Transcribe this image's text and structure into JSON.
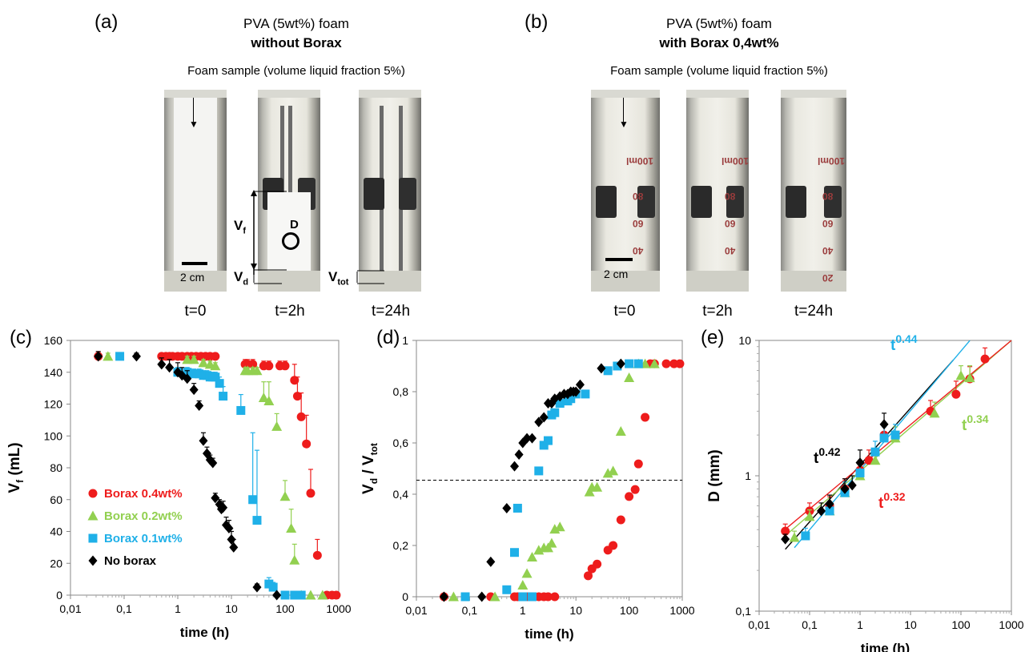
{
  "panel_a": {
    "label": "(a)",
    "title_line1": "PVA (5wt%) foam",
    "title_line2": "without Borax",
    "subtitle": "Foam sample (volume liquid fraction 5%)",
    "times": [
      "t=0",
      "t=2h",
      "t=24h"
    ],
    "scale_bar": "2 cm",
    "annotations": {
      "vf": "V",
      "vf_sub": "f",
      "vd": "V",
      "vd_sub": "d",
      "vtot": "V",
      "vtot_sub": "tot",
      "d": "D"
    }
  },
  "panel_b": {
    "label": "(b)",
    "title_line1": "PVA (5wt%) foam",
    "title_line2": "with Borax 0,4wt%",
    "subtitle": "Foam sample (volume liquid fraction 5%)",
    "times": [
      "t=0",
      "t=2h",
      "t=24h"
    ],
    "scale_bar": "2 cm",
    "graduations": [
      "100ml",
      "80",
      "60",
      "40",
      "20"
    ]
  },
  "colors": {
    "red": "#ee1c1c",
    "green": "#92d050",
    "blue": "#1fb0e8",
    "black": "#000000"
  },
  "chart_data": [
    {
      "panel": "(c)",
      "type": "scatter",
      "xscale": "log",
      "xlim": [
        0.01,
        1000
      ],
      "ylim": [
        0,
        160
      ],
      "xticks": [
        "0,01",
        "0,1",
        "1",
        "10",
        "100",
        "1000"
      ],
      "yticks": [
        "0",
        "20",
        "40",
        "60",
        "80",
        "100",
        "120",
        "140",
        "160"
      ],
      "xlabel": "time (h)",
      "ylabel": "V",
      "ylabel_sub": "f",
      "ylabel_unit": " (mL)",
      "legend_position": "left",
      "series": [
        {
          "name": "Borax 0.4wt%",
          "color": "#ee1c1c",
          "marker": "circle",
          "x": [
            0.033,
            0.5,
            0.6,
            0.7,
            0.8,
            1,
            1.2,
            1.5,
            1.8,
            2.2,
            2.7,
            3.3,
            4,
            5,
            18,
            20,
            25,
            40,
            50,
            80,
            100,
            150,
            170,
            200,
            250,
            300,
            400,
            600,
            750,
            900
          ],
          "y": [
            150,
            150,
            150,
            150,
            150,
            150,
            150,
            150,
            150,
            150,
            150,
            150,
            150,
            150,
            145,
            145,
            145,
            144,
            144,
            144,
            144,
            135,
            125,
            112,
            95,
            64,
            25,
            0,
            0,
            0
          ],
          "err": [
            3,
            2,
            2,
            2,
            2,
            2,
            2,
            2,
            2,
            2,
            2,
            2,
            2,
            2,
            3,
            3,
            3,
            3,
            3,
            3,
            3,
            10,
            12,
            15,
            18,
            15,
            10,
            0,
            0,
            0
          ]
        },
        {
          "name": "Borax 0.2wt%",
          "color": "#92d050",
          "marker": "triangle",
          "x": [
            0.05,
            1.5,
            2,
            3,
            4,
            5,
            18,
            20,
            25,
            30,
            40,
            50,
            70,
            100,
            130,
            150,
            200,
            300,
            500
          ],
          "y": [
            150,
            148,
            148,
            146,
            145,
            144,
            141,
            141,
            141,
            141,
            124,
            122,
            106,
            62,
            42,
            22,
            0,
            0,
            0
          ],
          "err": [
            2,
            2,
            2,
            2,
            2,
            2,
            2,
            2,
            2,
            2,
            10,
            12,
            8,
            10,
            12,
            10,
            0,
            0,
            0
          ]
        },
        {
          "name": "Borax 0.1wt%",
          "color": "#1fb0e8",
          "marker": "square",
          "x": [
            0.083,
            1,
            1.5,
            2,
            2.5,
            3,
            3.5,
            4,
            4.5,
            5,
            6,
            7,
            15,
            25,
            30,
            50,
            60,
            100,
            150,
            200
          ],
          "y": [
            150,
            140,
            140,
            139,
            139,
            138,
            138,
            137,
            137,
            137,
            133,
            125,
            116,
            60,
            47,
            7,
            5,
            0,
            0,
            0
          ],
          "err": [
            2,
            3,
            3,
            3,
            3,
            3,
            3,
            3,
            3,
            3,
            4,
            6,
            10,
            42,
            44,
            4,
            3,
            0,
            0,
            0
          ]
        },
        {
          "name": "No borax",
          "color": "#000000",
          "marker": "diamond",
          "x": [
            0.033,
            0.17,
            0.5,
            0.7,
            1,
            1.2,
            1.5,
            2,
            2.5,
            3,
            3.5,
            4,
            4.5,
            5,
            6,
            6.5,
            7,
            8,
            9,
            10,
            11,
            30,
            70
          ],
          "y": [
            150,
            150,
            145,
            143,
            140,
            138,
            136,
            129,
            119,
            97,
            89,
            85,
            83,
            61,
            57,
            54,
            55,
            44,
            42,
            35,
            30,
            5,
            0
          ],
          "err": [
            3,
            2,
            4,
            5,
            6,
            5,
            5,
            4,
            3,
            5,
            4,
            3,
            3,
            3,
            3,
            4,
            4,
            5,
            5,
            5,
            5,
            2,
            0
          ]
        }
      ]
    },
    {
      "panel": "(d)",
      "type": "scatter",
      "xscale": "log",
      "xlim": [
        0.01,
        1000
      ],
      "ylim": [
        0,
        1.1
      ],
      "xticks": [
        "0,01",
        "0,1",
        "1",
        "10",
        "100",
        "1000"
      ],
      "yticks": [
        "0",
        "0,2",
        "0,4",
        "0,6",
        "0,8",
        "1"
      ],
      "xlabel": "time (h)",
      "ylabel": "V",
      "ylabel_sub": "d",
      "ylabel_mid": " / V",
      "ylabel_sub2": "tot",
      "reference_line": 0.5,
      "series": [
        {
          "color": "#ee1c1c",
          "marker": "circle",
          "x": [
            0.033,
            0.25,
            0.7,
            0.8,
            0.9,
            1,
            1.2,
            1.5,
            2,
            2.5,
            3,
            4,
            17,
            20,
            25,
            40,
            50,
            70,
            100,
            130,
            150,
            200,
            250,
            300,
            500,
            700,
            900
          ],
          "y": [
            0,
            0,
            0,
            0,
            0,
            0,
            0,
            0,
            0,
            0,
            0,
            0,
            0.09,
            0.12,
            0.14,
            0.2,
            0.22,
            0.33,
            0.43,
            0.46,
            0.57,
            0.77,
            1,
            1,
            1,
            1,
            1
          ]
        },
        {
          "color": "#92d050",
          "marker": "triangle",
          "x": [
            0.05,
            0.3,
            1,
            1.2,
            1.5,
            2,
            2.5,
            3,
            3.5,
            4,
            5,
            18,
            20,
            25,
            40,
            50,
            70,
            100,
            150,
            200,
            300
          ],
          "y": [
            0,
            0,
            0.05,
            0.1,
            0.17,
            0.2,
            0.21,
            0.21,
            0.23,
            0.29,
            0.3,
            0.45,
            0.47,
            0.47,
            0.53,
            0.54,
            0.71,
            0.94,
            1,
            1,
            1
          ]
        },
        {
          "color": "#1fb0e8",
          "marker": "square",
          "x": [
            0.083,
            0.5,
            0.7,
            0.8,
            1,
            1.5,
            2,
            2.5,
            3,
            3.5,
            4,
            5,
            7,
            8,
            10,
            15,
            40,
            60,
            100,
            150
          ],
          "y": [
            0,
            0.03,
            0.19,
            0.38,
            0,
            0,
            0.54,
            0.65,
            0.67,
            0.78,
            0.79,
            0.83,
            0.84,
            0.85,
            0.87,
            0.87,
            0.97,
            0.99,
            1,
            1
          ]
        },
        {
          "color": "#000000",
          "marker": "diamond",
          "x": [
            0.033,
            0.17,
            0.25,
            0.5,
            0.7,
            0.85,
            1,
            1.2,
            1.5,
            2,
            2.5,
            3,
            3.5,
            4,
            5,
            6,
            7,
            8,
            9,
            10,
            12,
            30,
            70
          ],
          "y": [
            0,
            0,
            0.15,
            0.38,
            0.56,
            0.61,
            0.66,
            0.68,
            0.68,
            0.75,
            0.77,
            0.83,
            0.83,
            0.85,
            0.86,
            0.87,
            0.87,
            0.88,
            0.88,
            0.88,
            0.91,
            0.98,
            1
          ]
        }
      ]
    },
    {
      "panel": "(e)",
      "type": "scatter",
      "xscale": "log",
      "yscale": "log",
      "xlim": [
        0.01,
        1000
      ],
      "ylim": [
        0.1,
        10
      ],
      "xticks": [
        "0,01",
        "0,1",
        "1",
        "10",
        "100",
        "1000"
      ],
      "yticks": [
        "0,1",
        "1",
        "10"
      ],
      "xlabel": "time (h)",
      "ylabel": "D (mm)",
      "fits": [
        {
          "label": "t",
          "exponent": "0.42",
          "color": "#000000",
          "a": 1.2,
          "b": 0.42,
          "x0": 0.033,
          "x1": 70
        },
        {
          "label": "t",
          "exponent": "0.44",
          "color": "#1fb0e8",
          "a": 1.1,
          "b": 0.44,
          "x0": 0.05,
          "x1": 150
        },
        {
          "label": "t",
          "exponent": "0.34",
          "color": "#92d050",
          "a": 1.15,
          "b": 0.34,
          "x0": 0.033,
          "x1": 1000
        },
        {
          "label": "t",
          "exponent": "0.32",
          "color": "#ee1c1c",
          "a": 1.2,
          "b": 0.32,
          "x0": 0.033,
          "x1": 1000
        }
      ],
      "series": [
        {
          "color": "#ee1c1c",
          "marker": "circle",
          "x": [
            0.033,
            0.1,
            0.25,
            0.5,
            1,
            1.5,
            3,
            25,
            80,
            150,
            300
          ],
          "y": [
            0.39,
            0.55,
            0.6,
            0.8,
            1.1,
            1.3,
            2,
            3,
            4,
            5.2,
            7.3
          ],
          "err": [
            0.05,
            0.08,
            0.1,
            0.15,
            0.2,
            0.25,
            0.4,
            0.6,
            1,
            1.2,
            1.5
          ]
        },
        {
          "color": "#92d050",
          "marker": "triangle",
          "x": [
            0.05,
            0.1,
            0.25,
            0.5,
            1,
            2,
            5,
            30,
            100,
            150
          ],
          "y": [
            0.35,
            0.5,
            0.55,
            0.75,
            1,
            1.3,
            1.9,
            2.9,
            5.5,
            5.3
          ],
          "err": [
            0.04,
            0.06,
            0.08,
            0.15,
            0.2,
            0.3,
            0.4,
            0.6,
            1,
            1.2
          ]
        },
        {
          "color": "#1fb0e8",
          "marker": "square",
          "x": [
            0.083,
            0.25,
            0.5,
            1,
            2,
            3,
            5
          ],
          "y": [
            0.36,
            0.55,
            0.75,
            1.05,
            1.5,
            1.9,
            2
          ],
          "err": [
            0.05,
            0.08,
            0.15,
            0.2,
            0.3,
            0.4,
            0.4
          ]
        },
        {
          "color": "#000000",
          "marker": "diamond",
          "x": [
            0.033,
            0.17,
            0.25,
            0.5,
            0.7,
            1,
            3
          ],
          "y": [
            0.34,
            0.55,
            0.62,
            0.8,
            0.85,
            1.25,
            2.4
          ],
          "err": [
            0.03,
            0.08,
            0.1,
            0.15,
            0.15,
            0.3,
            0.5
          ]
        }
      ]
    }
  ]
}
